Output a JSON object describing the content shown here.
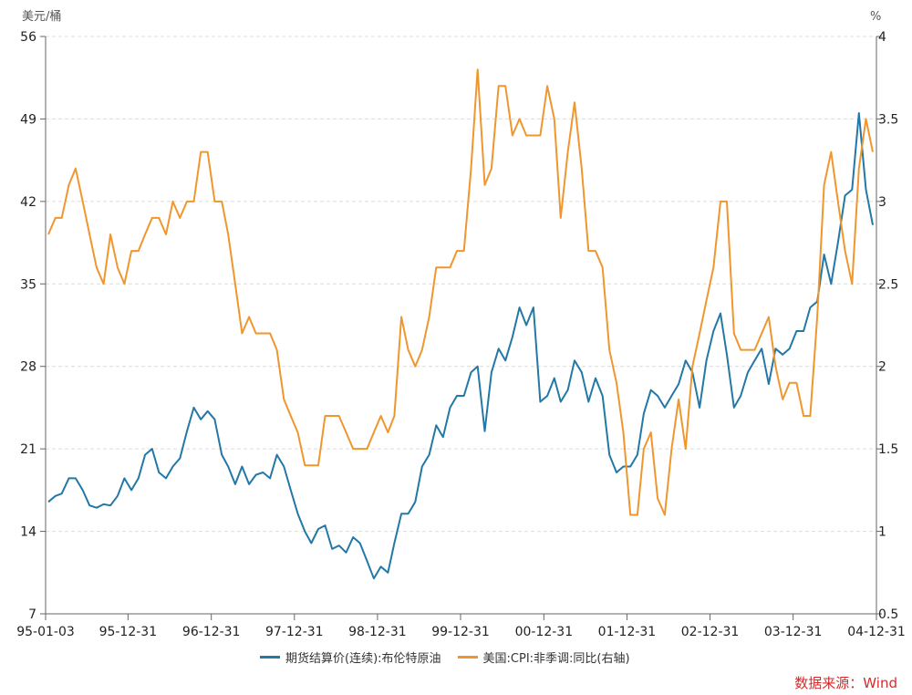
{
  "chart_data": {
    "type": "line",
    "title": "",
    "left_axis": {
      "unit_label": "美元/桶",
      "range": [
        7,
        56
      ],
      "ticks": [
        "7",
        "14",
        "21",
        "28",
        "35",
        "42",
        "49",
        "56"
      ]
    },
    "right_axis": {
      "unit_label": "%",
      "range": [
        0.5,
        4
      ],
      "ticks": [
        "0.5",
        "1",
        "1.5",
        "2",
        "2.5",
        "3",
        "3.5",
        "4"
      ]
    },
    "x_axis": {
      "range": [
        "1995-01-03",
        "2004-12-31"
      ],
      "ticks": [
        "95-01-03",
        "95-12-31",
        "96-12-31",
        "97-12-31",
        "98-12-31",
        "99-12-31",
        "00-12-31",
        "01-12-31",
        "02-12-31",
        "03-12-31",
        "04-12-31"
      ]
    },
    "grid": "horizontal dashed",
    "legend_placement": "bottom",
    "x_start_month": "1995-01",
    "series": [
      {
        "name": "期货结算价(连续):布伦特原油",
        "axis": "left",
        "color": "#2378a6",
        "frequency": "monthly",
        "values": [
          16.5,
          17,
          17.2,
          18.5,
          18.5,
          17.5,
          16.2,
          16.0,
          16.3,
          16.2,
          17,
          18.5,
          17.5,
          18.5,
          20.5,
          21,
          19,
          18.5,
          19.5,
          20.2,
          22.5,
          24.5,
          23.5,
          24.2,
          23.5,
          20.5,
          19.5,
          18,
          19.5,
          18,
          18.8,
          19,
          18.5,
          20.5,
          19.5,
          17.5,
          15.5,
          14,
          13,
          14.2,
          14.5,
          12.5,
          12.8,
          12.2,
          13.5,
          13,
          11.5,
          10,
          11,
          10.5,
          13,
          15.5,
          15.5,
          16.5,
          19.5,
          20.5,
          23,
          22,
          24.5,
          25.5,
          25.5,
          27.5,
          28,
          22.5,
          27.5,
          29.5,
          28.5,
          30.5,
          33,
          31.5,
          33,
          25,
          25.5,
          27,
          25,
          26,
          28.5,
          27.5,
          25,
          27,
          25.5,
          20.5,
          19,
          19.5,
          19.5,
          20.5,
          24,
          26,
          25.5,
          24.5,
          25.5,
          26.5,
          28.5,
          27.5,
          24.5,
          28.5,
          31,
          32.5,
          29,
          24.5,
          25.5,
          27.5,
          28.5,
          29.5,
          26.5,
          29.5,
          29,
          29.5,
          31,
          31,
          33,
          33.5,
          37.5,
          35,
          38.5,
          42.5,
          43,
          49.5,
          43,
          40
        ]
      },
      {
        "name": "美国:CPI:非季调:同比(右轴)",
        "axis": "right",
        "color": "#f0962e",
        "frequency": "monthly",
        "values": [
          2.8,
          2.9,
          2.9,
          3.1,
          3.2,
          3.0,
          2.8,
          2.6,
          2.5,
          2.8,
          2.6,
          2.5,
          2.7,
          2.7,
          2.8,
          2.9,
          2.9,
          2.8,
          3.0,
          2.9,
          3.0,
          3.0,
          3.3,
          3.3,
          3.0,
          3.0,
          2.8,
          2.5,
          2.2,
          2.3,
          2.2,
          2.2,
          2.2,
          2.1,
          1.8,
          1.7,
          1.6,
          1.4,
          1.4,
          1.4,
          1.7,
          1.7,
          1.7,
          1.6,
          1.5,
          1.5,
          1.5,
          1.6,
          1.7,
          1.6,
          1.7,
          2.3,
          2.1,
          2.0,
          2.1,
          2.3,
          2.6,
          2.6,
          2.6,
          2.7,
          2.7,
          3.2,
          3.8,
          3.1,
          3.2,
          3.7,
          3.7,
          3.4,
          3.5,
          3.4,
          3.4,
          3.4,
          3.7,
          3.5,
          2.9,
          3.3,
          3.6,
          3.2,
          2.7,
          2.7,
          2.6,
          2.1,
          1.9,
          1.6,
          1.1,
          1.1,
          1.5,
          1.6,
          1.2,
          1.1,
          1.5,
          1.8,
          1.5,
          2.0,
          2.2,
          2.4,
          2.6,
          3.0,
          3.0,
          2.2,
          2.1,
          2.1,
          2.1,
          2.2,
          2.3,
          2.0,
          1.8,
          1.9,
          1.9,
          1.7,
          1.7,
          2.3,
          3.1,
          3.3,
          3.0,
          2.7,
          2.5,
          3.2,
          3.5,
          3.3
        ]
      }
    ]
  },
  "source": "数据来源：Wind"
}
